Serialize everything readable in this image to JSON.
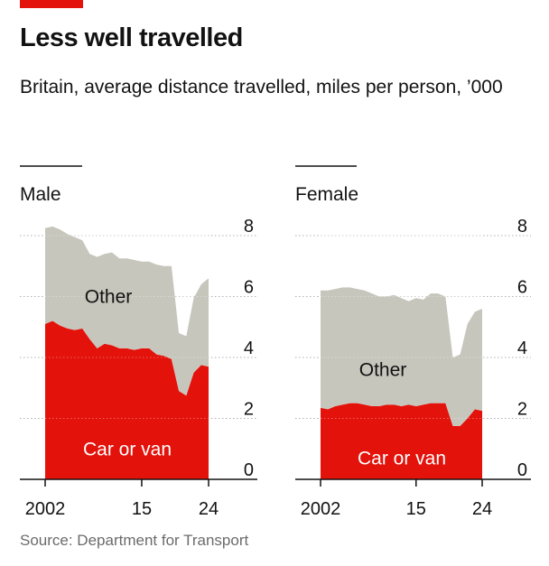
{
  "header": {
    "title": "Less well travelled",
    "subtitle": "Britain, average distance travelled, miles per person, ’000"
  },
  "footer": {
    "source": "Source: Department for Transport"
  },
  "colors": {
    "accent": "#e3120b",
    "car_or_van": "#e3120b",
    "other": "#c7c6bd",
    "gridline": "#b0b0b0",
    "axis": "#121212",
    "text": "#121212",
    "source_text": "#6b6b6b"
  },
  "chart_data": [
    {
      "type": "area",
      "stacked": true,
      "panel_label": "Male",
      "x": [
        2002,
        2003,
        2004,
        2005,
        2006,
        2007,
        2008,
        2009,
        2010,
        2011,
        2012,
        2013,
        2014,
        2015,
        2016,
        2017,
        2018,
        2019,
        2020,
        2021,
        2022,
        2023,
        2024
      ],
      "series": [
        {
          "name": "Car or van",
          "values": [
            5.1,
            5.2,
            5.05,
            4.95,
            4.9,
            4.95,
            4.6,
            4.3,
            4.45,
            4.4,
            4.3,
            4.3,
            4.25,
            4.3,
            4.3,
            4.1,
            4.05,
            3.95,
            2.9,
            2.75,
            3.5,
            3.75,
            3.7
          ]
        },
        {
          "name": "Other",
          "values": [
            3.15,
            3.1,
            3.15,
            3.1,
            3.05,
            2.9,
            2.8,
            3.0,
            2.95,
            3.05,
            2.95,
            2.95,
            2.95,
            2.85,
            2.85,
            2.95,
            2.95,
            3.05,
            1.9,
            1.95,
            2.45,
            2.65,
            2.9
          ]
        }
      ],
      "xticks": [
        "2002",
        "15",
        "24"
      ],
      "yticks": [
        "0",
        "2",
        "4",
        "6",
        "8"
      ],
      "ylim": [
        0,
        8
      ],
      "grid": true
    },
    {
      "type": "area",
      "stacked": true,
      "panel_label": "Female",
      "x": [
        2002,
        2003,
        2004,
        2005,
        2006,
        2007,
        2008,
        2009,
        2010,
        2011,
        2012,
        2013,
        2014,
        2015,
        2016,
        2017,
        2018,
        2019,
        2020,
        2021,
        2022,
        2023,
        2024
      ],
      "series": [
        {
          "name": "Car or van",
          "values": [
            2.35,
            2.3,
            2.4,
            2.45,
            2.5,
            2.5,
            2.45,
            2.4,
            2.4,
            2.45,
            2.45,
            2.4,
            2.45,
            2.4,
            2.45,
            2.5,
            2.5,
            2.5,
            1.75,
            1.75,
            2.0,
            2.3,
            2.25
          ]
        },
        {
          "name": "Other",
          "values": [
            3.85,
            3.9,
            3.85,
            3.85,
            3.8,
            3.75,
            3.75,
            3.7,
            3.6,
            3.55,
            3.6,
            3.55,
            3.4,
            3.55,
            3.45,
            3.6,
            3.6,
            3.5,
            2.25,
            2.35,
            3.1,
            3.2,
            3.35
          ]
        }
      ],
      "xticks": [
        "2002",
        "15",
        "24"
      ],
      "yticks": [
        "0",
        "2",
        "4",
        "6",
        "8"
      ],
      "ylim": [
        0,
        8
      ],
      "grid": true
    }
  ]
}
